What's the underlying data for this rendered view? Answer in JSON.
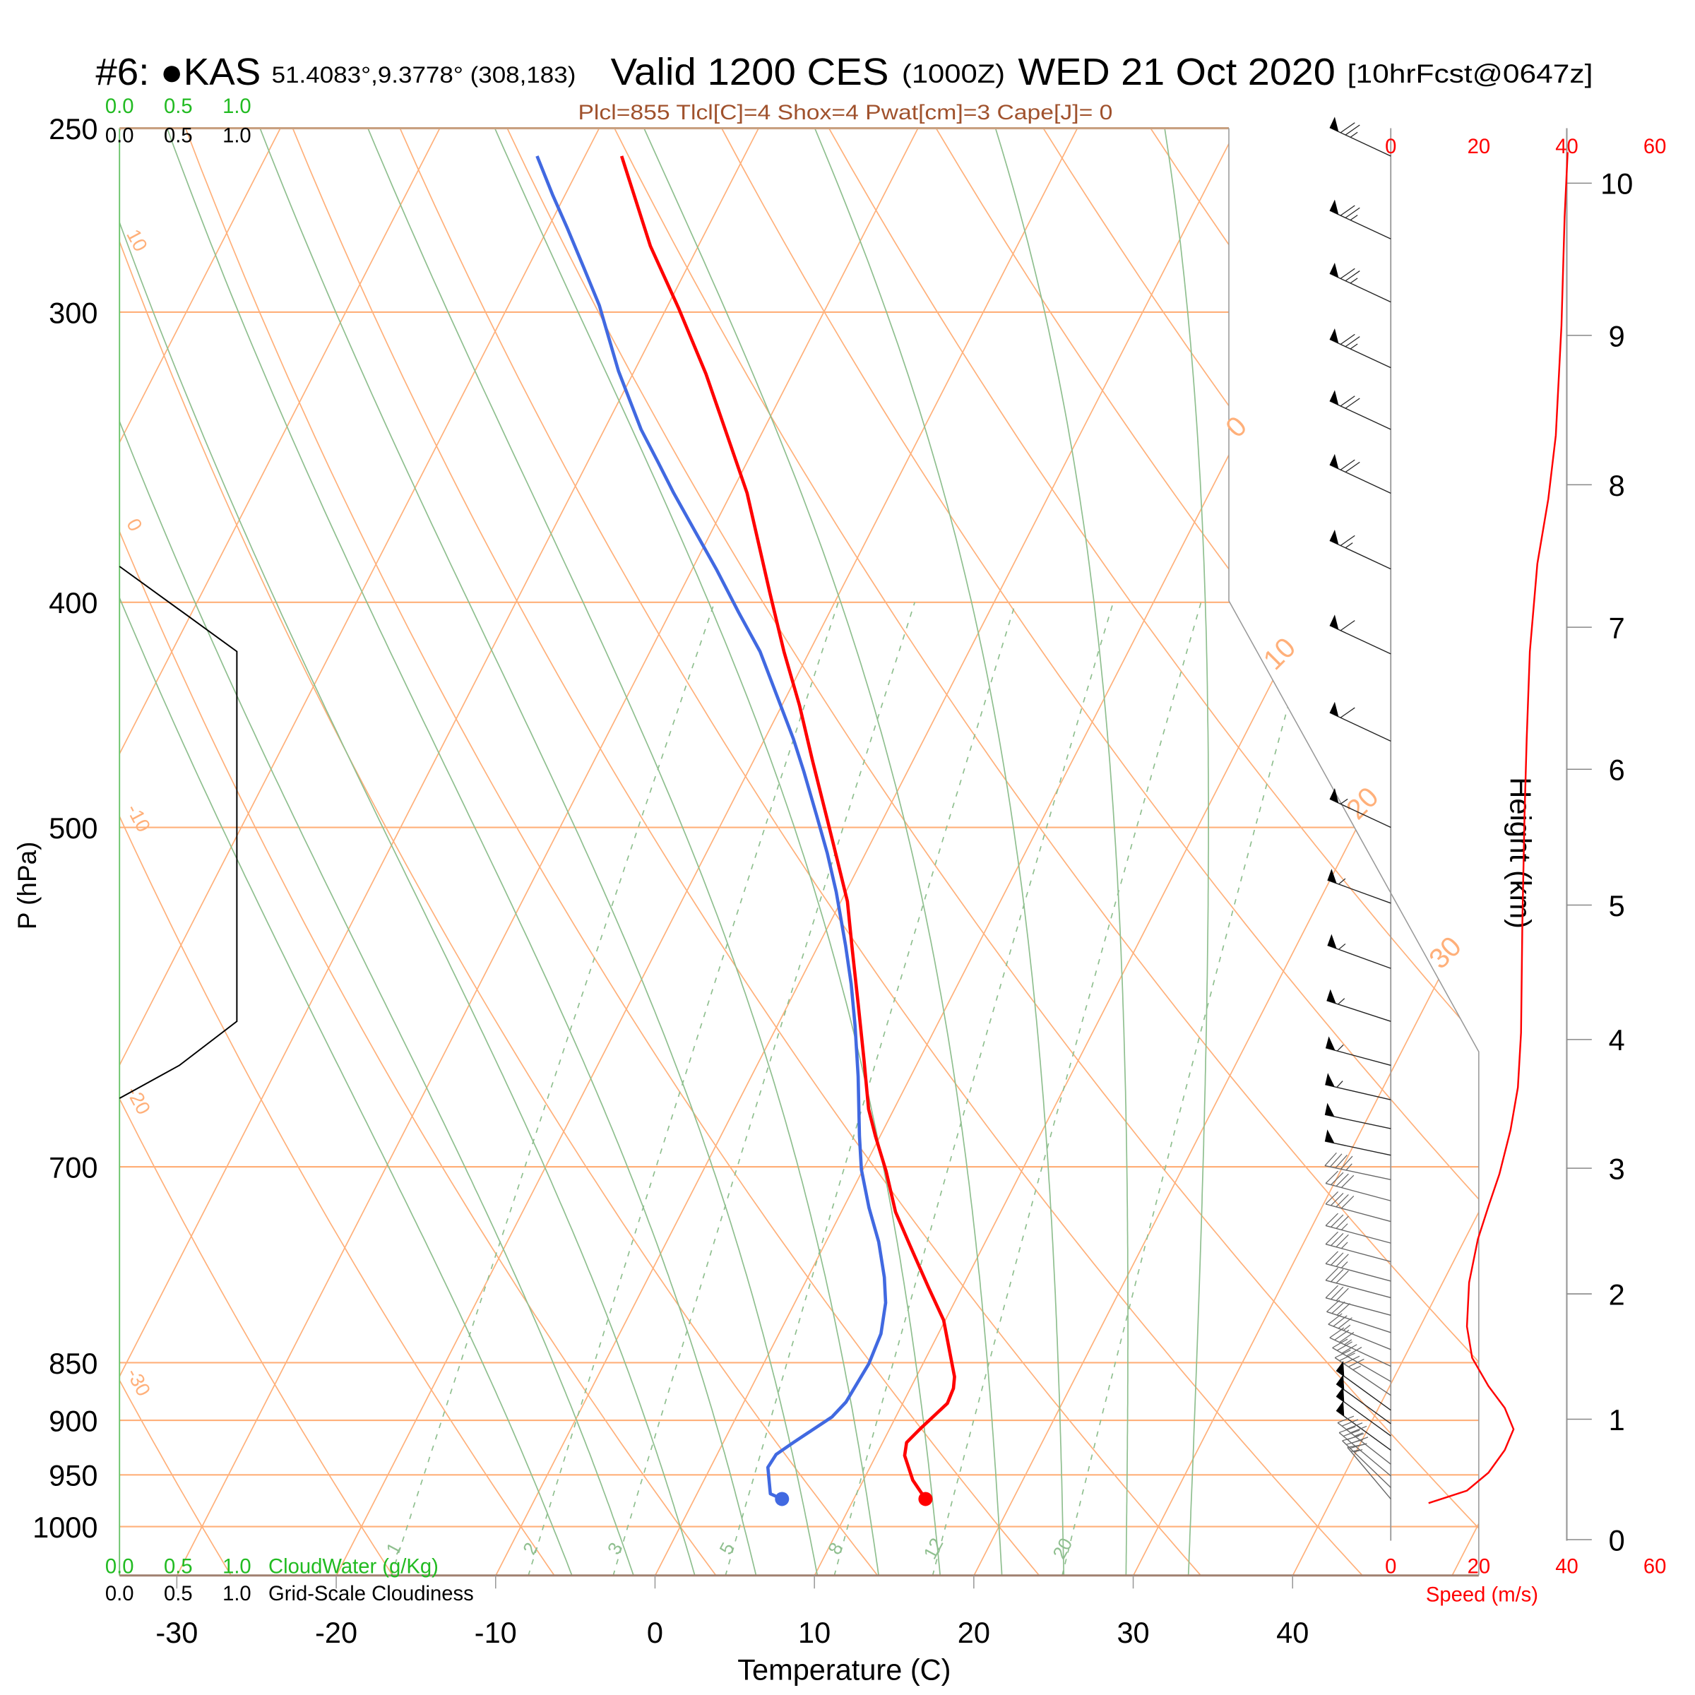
{
  "header": {
    "station": "#6: ●KAS",
    "coords": "51.4083°,9.3778° (308,183)",
    "valid": "Valid 1200 CES",
    "zulu": "(1000Z)",
    "date": "WED 21 Oct 2020",
    "forecast": "[10hrFcst@0647z]"
  },
  "indices": "Plcl=855 Tlcl[C]=4 Shox=4 Pwat[cm]=3 Cape[J]= 0",
  "colors": {
    "temperature": "#ff0000",
    "dewpoint": "#4169e1",
    "isotherm_adiabat": "#ffb07a",
    "moist_mixing": "#8fbf8f",
    "indices_text": "#a0522d",
    "speed": "#ff0000",
    "cloudwater": "#22bb22"
  },
  "chart_data": {
    "type": "skew-t",
    "xlabel": "Temperature (C)",
    "ylabel": "P (hPa)",
    "x_ticks": [
      -30,
      -20,
      -10,
      0,
      10,
      20,
      30,
      40
    ],
    "pressure_ticks": [
      250,
      300,
      400,
      500,
      700,
      850,
      900,
      950,
      1000
    ],
    "xlim_at_bottom": [
      -33.6,
      51.7
    ],
    "ylim": [
      1050,
      250
    ],
    "isotherms_step": 10,
    "isotherm_labels": [
      0,
      10,
      20,
      30
    ],
    "dry_adiabat_labels": [
      10,
      0,
      -10,
      -20,
      -30
    ],
    "moist_adiabat_thetaw": [
      -8,
      -4,
      0,
      4,
      8,
      12,
      16,
      20,
      24,
      28,
      32
    ],
    "mixing_ratio_lines": [
      1,
      2,
      3,
      5,
      8,
      12,
      20
    ],
    "temperature": [
      [
        973,
        14.5
      ],
      [
        955,
        13.1
      ],
      [
        932,
        11.8
      ],
      [
        920,
        11.5
      ],
      [
        908,
        11.9
      ],
      [
        885,
        12.8
      ],
      [
        872,
        12.7
      ],
      [
        862,
        12.4
      ],
      [
        843,
        11.4
      ],
      [
        815,
        9.9
      ],
      [
        789,
        7.9
      ],
      [
        757,
        5.4
      ],
      [
        732,
        3.4
      ],
      [
        703,
        1.5
      ],
      [
        679,
        -0.3
      ],
      [
        661,
        -1.6
      ],
      [
        629,
        -3.5
      ],
      [
        596,
        -5.6
      ],
      [
        565,
        -7.7
      ],
      [
        538,
        -9.6
      ],
      [
        516,
        -11.6
      ],
      [
        497,
        -13.4
      ],
      [
        468,
        -16.3
      ],
      [
        443,
        -18.9
      ],
      [
        420,
        -21.6
      ],
      [
        396,
        -24.4
      ],
      [
        377,
        -26.7
      ],
      [
        359,
        -29.0
      ],
      [
        339,
        -32.1
      ],
      [
        319,
        -35.4
      ],
      [
        299,
        -39.2
      ],
      [
        281,
        -43.0
      ],
      [
        257,
        -47.7
      ]
    ],
    "dewpoint": [
      [
        973,
        5.5
      ],
      [
        968,
        4.6
      ],
      [
        943,
        3.6
      ],
      [
        931,
        3.7
      ],
      [
        920,
        4.4
      ],
      [
        897,
        6.0
      ],
      [
        884,
        6.4
      ],
      [
        851,
        6.6
      ],
      [
        826,
        6.4
      ],
      [
        801,
        5.7
      ],
      [
        781,
        4.8
      ],
      [
        754,
        3.3
      ],
      [
        729,
        1.6
      ],
      [
        702,
        -0.1
      ],
      [
        679,
        -1.3
      ],
      [
        640,
        -3.3
      ],
      [
        609,
        -5.1
      ],
      [
        584,
        -6.7
      ],
      [
        562,
        -8.3
      ],
      [
        533,
        -10.6
      ],
      [
        513,
        -12.4
      ],
      [
        494,
        -14.3
      ],
      [
        473,
        -16.5
      ],
      [
        458,
        -18.2
      ],
      [
        439,
        -20.6
      ],
      [
        420,
        -23.1
      ],
      [
        404,
        -25.7
      ],
      [
        387,
        -28.5
      ],
      [
        373,
        -31.0
      ],
      [
        359,
        -33.6
      ],
      [
        348,
        -35.6
      ],
      [
        337,
        -37.7
      ],
      [
        318,
        -41.0
      ],
      [
        298,
        -44.3
      ],
      [
        287,
        -46.5
      ],
      [
        276,
        -48.8
      ],
      [
        267,
        -50.8
      ],
      [
        257,
        -53.0
      ]
    ],
    "wind_barbs": [
      [
        257,
        245,
        78
      ],
      [
        279,
        245,
        77
      ],
      [
        297,
        245,
        76
      ],
      [
        317,
        245,
        75
      ],
      [
        337,
        245,
        73
      ],
      [
        359,
        245,
        70
      ],
      [
        387,
        245,
        65
      ],
      [
        421,
        245,
        61
      ],
      [
        459,
        245,
        60
      ],
      [
        500,
        245,
        59
      ],
      [
        539,
        250,
        58
      ],
      [
        575,
        250,
        58
      ],
      [
        606,
        252,
        58
      ],
      [
        633,
        255,
        57
      ],
      [
        655,
        257,
        55
      ],
      [
        674,
        258,
        53
      ],
      [
        692,
        258,
        50
      ],
      [
        709,
        258,
        47
      ],
      [
        724,
        255,
        44
      ],
      [
        739,
        255,
        40
      ],
      [
        755,
        255,
        38
      ],
      [
        769,
        255,
        36
      ],
      [
        784,
        255,
        35
      ],
      [
        797,
        255,
        34
      ],
      [
        811,
        255,
        34
      ],
      [
        825,
        252,
        34
      ],
      [
        839,
        248,
        35
      ],
      [
        853,
        245,
        37
      ],
      [
        866,
        240,
        42
      ],
      [
        878,
        236,
        47
      ],
      [
        891,
        234,
        51
      ],
      [
        903,
        234,
        53
      ],
      [
        914,
        234,
        53
      ],
      [
        927,
        234,
        50
      ],
      [
        940,
        232,
        46
      ],
      [
        951,
        230,
        42
      ],
      [
        962,
        226,
        37
      ],
      [
        973,
        220,
        19
      ]
    ],
    "speed_profile": {
      "label": "Speed (m/s)",
      "ticks": [
        0,
        20,
        40,
        60
      ],
      "points": [
        [
          256,
          40.2
        ],
        [
          273,
          39.5
        ],
        [
          304,
          38.8
        ],
        [
          339,
          37.5
        ],
        [
          361,
          35.8
        ],
        [
          385,
          33.3
        ],
        [
          420,
          31.6
        ],
        [
          458,
          30.9
        ],
        [
          494,
          30.4
        ],
        [
          550,
          29.9
        ],
        [
          613,
          29.6
        ],
        [
          647,
          28.9
        ],
        [
          675,
          27.2
        ],
        [
          705,
          24.7
        ],
        [
          728,
          22.2
        ],
        [
          752,
          19.8
        ],
        [
          785,
          17.8
        ],
        [
          820,
          17.3
        ],
        [
          846,
          18.5
        ],
        [
          870,
          22.2
        ],
        [
          889,
          25.9
        ],
        [
          908,
          27.9
        ],
        [
          927,
          25.9
        ],
        [
          948,
          22.2
        ],
        [
          965,
          17.3
        ],
        [
          977,
          8.6
        ]
      ]
    },
    "height_axis": {
      "label": "Height (km)",
      "ticks": [
        {
          "km": 0,
          "p": 1013
        },
        {
          "km": 1,
          "p": 899
        },
        {
          "km": 2,
          "p": 794
        },
        {
          "km": 3,
          "p": 701
        },
        {
          "km": 4,
          "p": 617
        },
        {
          "km": 5,
          "p": 540
        },
        {
          "km": 6,
          "p": 472
        },
        {
          "km": 7,
          "p": 410
        },
        {
          "km": 8,
          "p": 356
        },
        {
          "km": 9,
          "p": 307
        },
        {
          "km": 10,
          "p": 264
        }
      ]
    },
    "cloud_panel": {
      "ticks": [
        "0.0",
        "0.5",
        "1.0"
      ],
      "cloudwater_label": "CloudWater (g/Kg)",
      "cloudiness_label": "Grid-Scale Cloudiness",
      "cloudiness": [
        [
          386,
          0
        ],
        [
          405,
          0.57
        ],
        [
          420,
          1.0
        ],
        [
          606,
          1.0
        ],
        [
          633,
          0.51
        ],
        [
          654,
          0
        ]
      ]
    }
  }
}
